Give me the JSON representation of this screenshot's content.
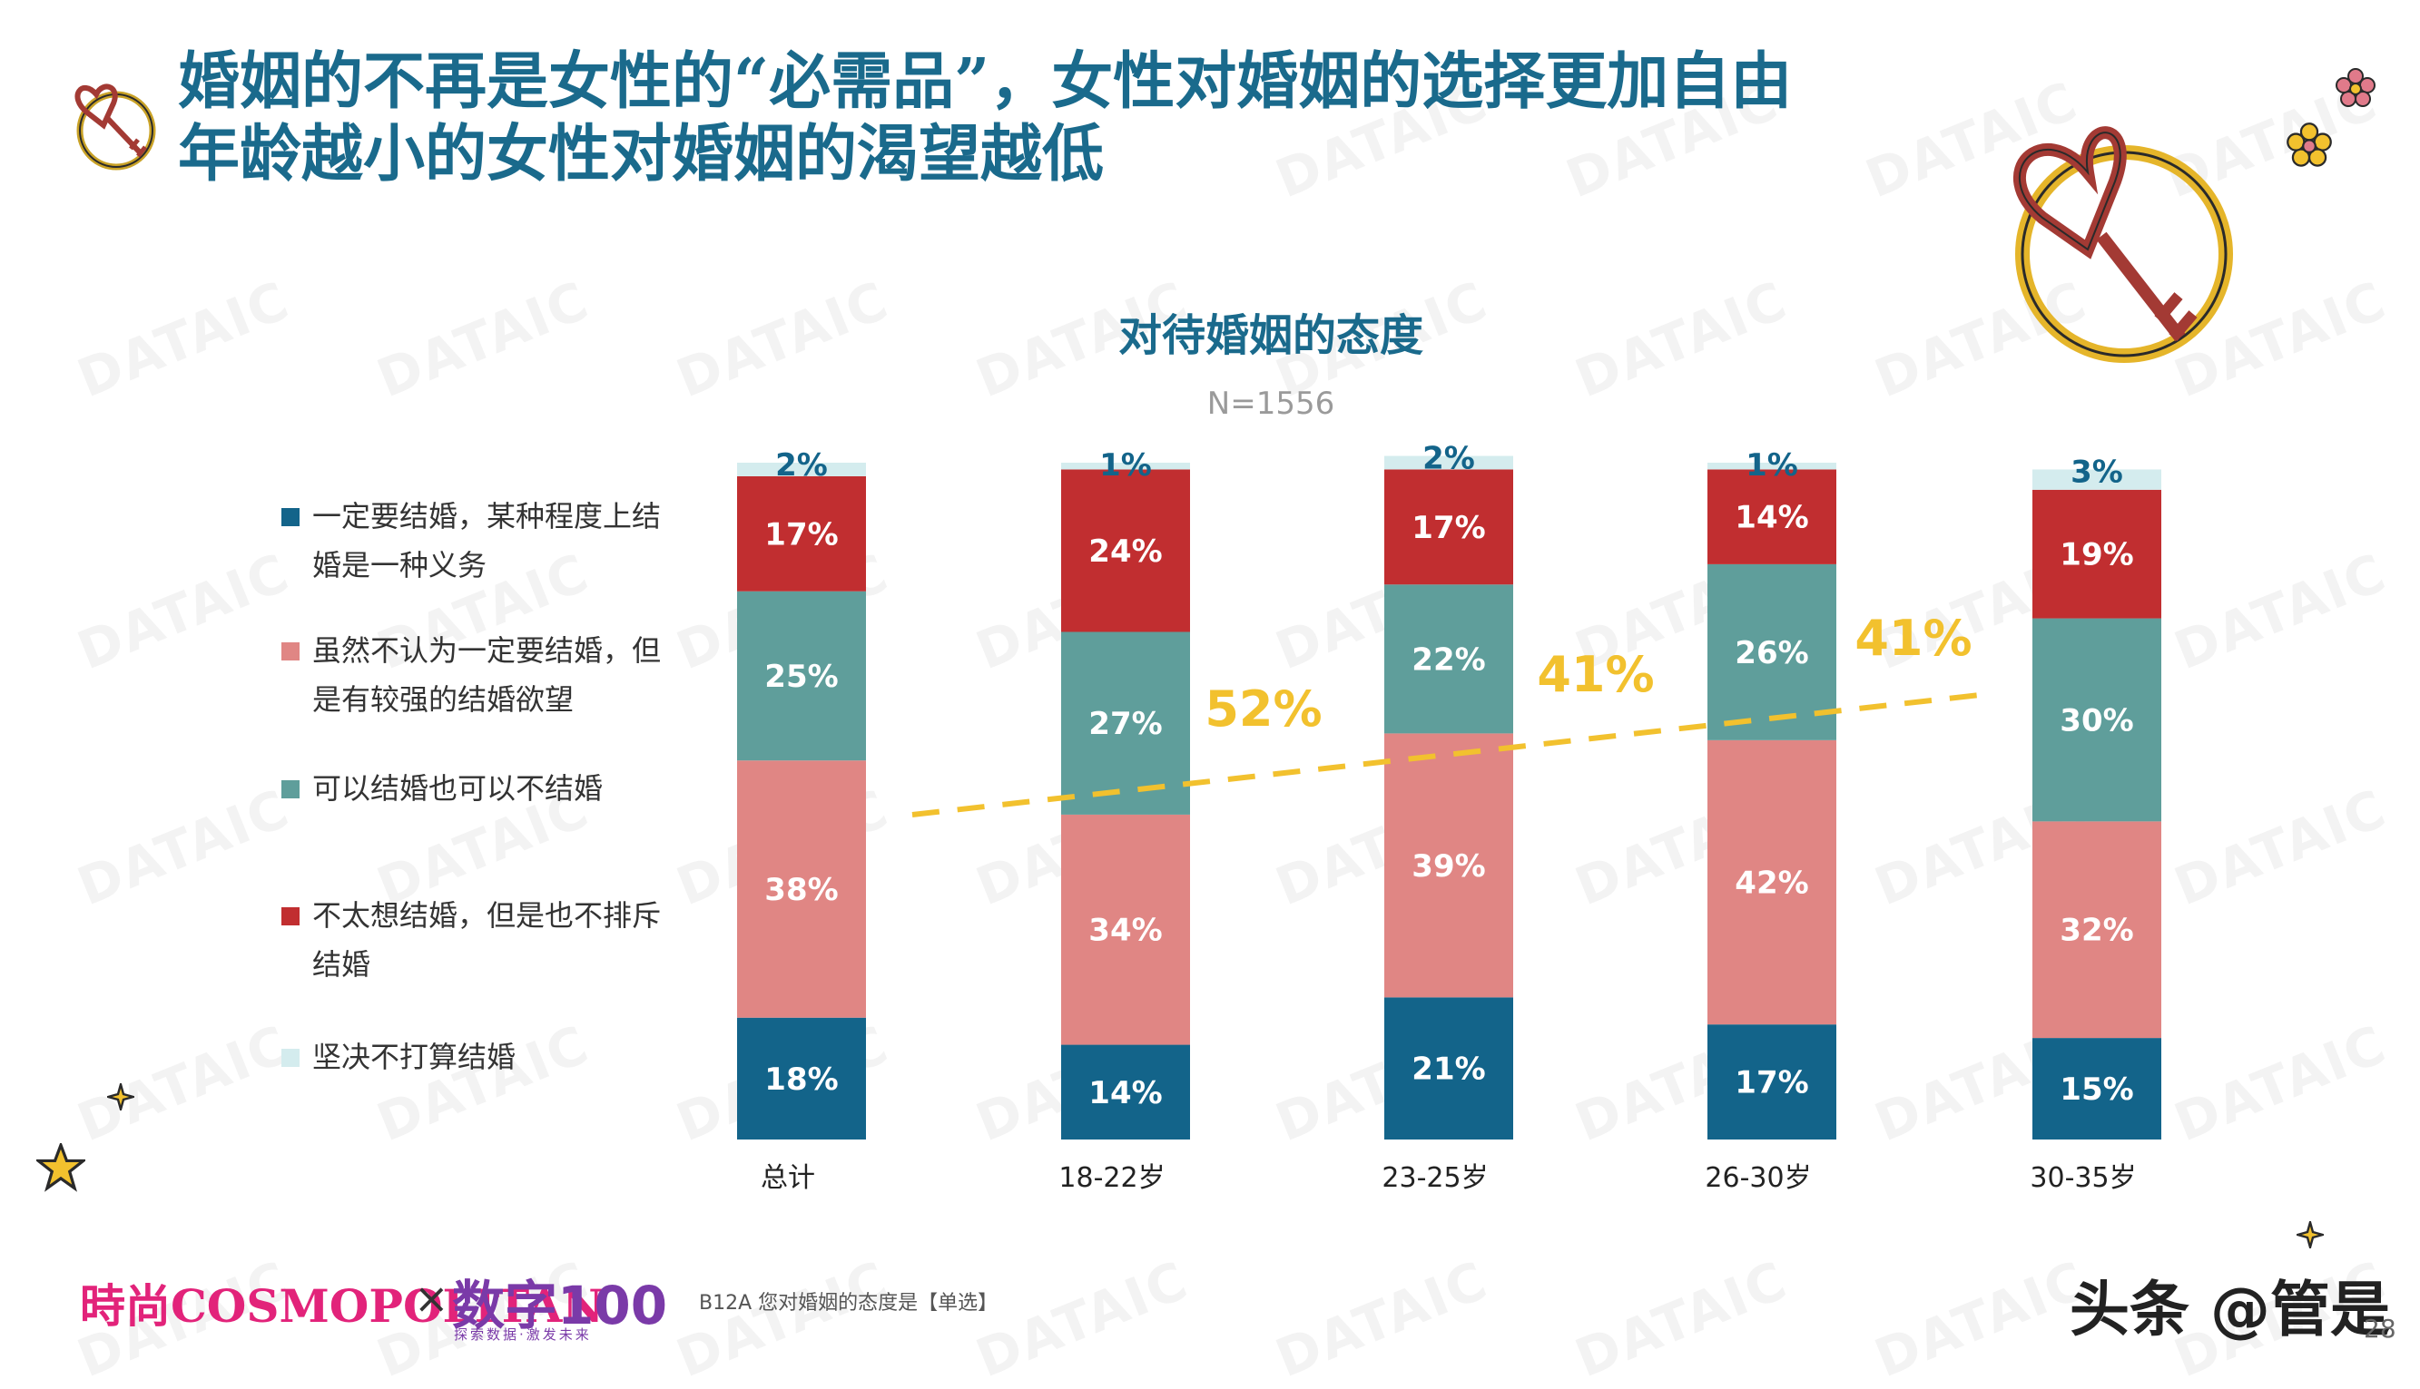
{
  "title": {
    "line1": "婚姻的不再是女性的“必需品”，女性对婚姻的选择更加自由",
    "line2": "年龄越小的女性对婚姻的渴望越低"
  },
  "watermark_text": "DATAIC",
  "legend": [
    {
      "label": "一定要结婚，某种程度上结婚是一种义务",
      "color": "#13648a"
    },
    {
      "label": "虽然不认为一定要结婚，但是有较强的结婚欲望",
      "color": "#e08684"
    },
    {
      "label": "可以结婚也可以不结婚",
      "color": "#5f9e9b"
    },
    {
      "label": "不太想结婚，但是也不排斥结婚",
      "color": "#c12e30"
    },
    {
      "label": "坚决不打算结婚",
      "color": "#d4ecee"
    }
  ],
  "chart_data": {
    "type": "bar",
    "stacked": true,
    "title": "对待婚姻的态度",
    "subtitle": "N=1556",
    "categories": [
      "总计",
      "18-22岁",
      "23-25岁",
      "26-30岁",
      "30-35岁"
    ],
    "ylim": [
      0,
      100
    ],
    "series": [
      {
        "name": "一定要结婚，某种程度上结婚是一种义务",
        "color": "#13648a",
        "label_color": "#ffffff",
        "values": [
          18,
          14,
          21,
          17,
          15
        ]
      },
      {
        "name": "虽然不认为一定要结婚，但是有较强的结婚欲望",
        "color": "#e08684",
        "label_color": "#ffffff",
        "values": [
          38,
          34,
          39,
          42,
          32
        ]
      },
      {
        "name": "可以结婚也可以不结婚",
        "color": "#5f9e9b",
        "label_color": "#ffffff",
        "values": [
          25,
          27,
          22,
          26,
          30
        ]
      },
      {
        "name": "不太想结婚，但是也不排斥结婚",
        "color": "#c12e30",
        "label_color": "#ffffff",
        "values": [
          17,
          24,
          17,
          14,
          19
        ]
      },
      {
        "name": "坚决不打算结婚",
        "color": "#d4ecee",
        "label_color": "#13648a",
        "values": [
          2,
          1,
          2,
          1,
          3
        ]
      }
    ],
    "annotations": [
      {
        "text": "52%",
        "category": "18-22岁",
        "color": "#f2c12e"
      },
      {
        "text": "41%",
        "category": "23-25岁",
        "color": "#f2c12e"
      },
      {
        "text": "41%",
        "category": "26-30岁",
        "color": "#f2c12e"
      }
    ],
    "trend_line": {
      "color": "#f2c12e",
      "style": "dashed"
    }
  },
  "footer": {
    "logo_left": "時尚COSMOPOLITAN",
    "times": "×",
    "logo_right": "数字100",
    "logo_right_tagline": "探索数据·激发未来",
    "footnote": "B12A 您对婚姻的态度是【单选】",
    "source_badge": "头条 @管是",
    "page_number": "28"
  }
}
